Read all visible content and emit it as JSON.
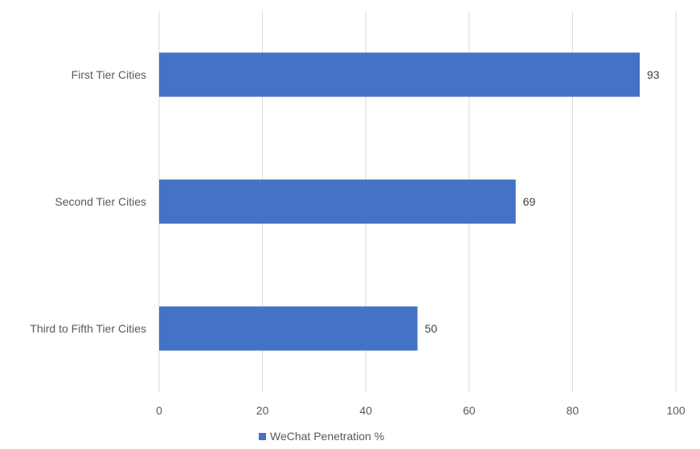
{
  "chart_data": {
    "type": "bar",
    "orientation": "horizontal",
    "categories": [
      "First Tier Cities",
      "Second Tier Cities",
      "Third to Fifth Tier Cities"
    ],
    "series": [
      {
        "name": "WeChat Penetration %",
        "values": [
          93,
          69,
          50
        ],
        "color": "#4472C4"
      }
    ],
    "data_labels": [
      "93",
      "69",
      "50"
    ],
    "xlim": [
      0,
      100
    ],
    "x_ticks": [
      0,
      20,
      40,
      60,
      80,
      100
    ],
    "x_tick_labels": [
      "0",
      "20",
      "40",
      "60",
      "80",
      "100"
    ],
    "grid": true,
    "legend": "bottom-center",
    "title": "",
    "xlabel": "",
    "ylabel": ""
  }
}
